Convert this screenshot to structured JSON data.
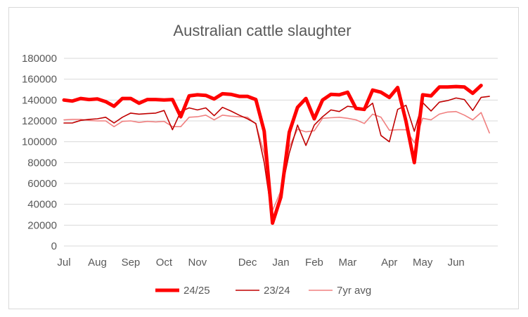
{
  "chart_data": {
    "type": "line",
    "title": "Australian cattle slaughter",
    "xlabel": "",
    "ylabel": "",
    "ylim": [
      0,
      180000
    ],
    "yticks": [
      0,
      20000,
      40000,
      60000,
      80000,
      100000,
      120000,
      140000,
      160000,
      180000
    ],
    "grid": true,
    "legend_position": "bottom",
    "x_range": [
      0,
      52
    ],
    "month_labels": [
      {
        "label": "Jul",
        "week": 0
      },
      {
        "label": "Aug",
        "week": 4
      },
      {
        "label": "Sep",
        "week": 8
      },
      {
        "label": "Oct",
        "week": 12
      },
      {
        "label": "Nov",
        "week": 16
      },
      {
        "label": "Dec",
        "week": 22
      },
      {
        "label": "Jan",
        "week": 26
      },
      {
        "label": "Feb",
        "week": 30
      },
      {
        "label": "Mar",
        "week": 34
      },
      {
        "label": "Apr",
        "week": 39
      },
      {
        "label": "May",
        "week": 43
      },
      {
        "label": "Jun",
        "week": 47
      }
    ],
    "series": [
      {
        "name": "24/25",
        "color": "#ff0000",
        "values": [
          140000,
          139000,
          141500,
          140500,
          141000,
          138500,
          134000,
          141500,
          141500,
          137000,
          140500,
          140500,
          140000,
          140500,
          124000,
          144000,
          145000,
          144500,
          141000,
          146000,
          145500,
          143500,
          143500,
          140500,
          110000,
          22000,
          47000,
          109000,
          133000,
          141500,
          122000,
          140000,
          145500,
          145000,
          147500,
          132000,
          131000,
          149500,
          147500,
          142500,
          152000,
          119500,
          80000,
          145000,
          144000,
          152500,
          152500,
          153000,
          152500,
          146500,
          154000
        ]
      },
      {
        "name": "23/24",
        "color": "#c00000",
        "values": [
          118000,
          118000,
          120500,
          121500,
          122000,
          123500,
          118000,
          123500,
          127500,
          126500,
          127000,
          127500,
          130000,
          111500,
          129000,
          132500,
          130500,
          132500,
          125000,
          133000,
          129500,
          125500,
          122000,
          117500,
          80000,
          25000,
          50000,
          89000,
          116000,
          96500,
          116000,
          124000,
          130500,
          129000,
          134000,
          133000,
          130500,
          137000,
          106000,
          100000,
          131000,
          135000,
          110000,
          137500,
          129500,
          138000,
          139500,
          142000,
          140500,
          130000,
          142500,
          143500
        ]
      },
      {
        "name": "7yr avg",
        "color": "#f08080",
        "values": [
          121000,
          121500,
          121500,
          120500,
          120000,
          120000,
          114500,
          119500,
          120000,
          118500,
          119500,
          119000,
          119500,
          114500,
          114500,
          123500,
          124000,
          125500,
          121000,
          125500,
          124500,
          124000,
          123500,
          117000,
          89000,
          34000,
          53000,
          95000,
          112000,
          109500,
          110500,
          122500,
          123000,
          123500,
          122500,
          121000,
          117500,
          126500,
          123500,
          111000,
          111500,
          111500,
          99000,
          122500,
          121000,
          126500,
          128500,
          129000,
          125500,
          121000,
          128000,
          108500
        ]
      }
    ]
  }
}
